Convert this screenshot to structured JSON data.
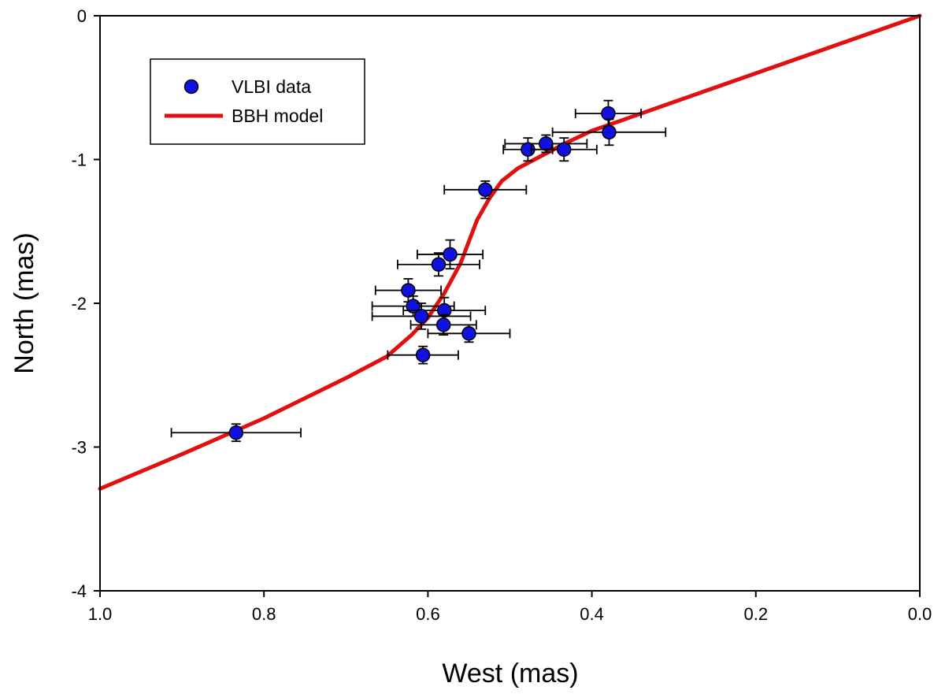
{
  "chart_data": {
    "type": "scatter",
    "title": "",
    "xlabel": "West (mas)",
    "ylabel": "North (mas)",
    "xlim": [
      1.0,
      0.0
    ],
    "ylim": [
      -4,
      0
    ],
    "x_ticks": [
      "1.0",
      "0.8",
      "0.6",
      "0.4",
      "0.2",
      "0.0"
    ],
    "y_ticks": [
      "0",
      "-1",
      "-2",
      "-3",
      "-4"
    ],
    "grid": false,
    "legend_position": "top-left",
    "colors": {
      "points": "#1010e0",
      "model": "#e01010",
      "errorbar": "#000000"
    },
    "legend": [
      {
        "label": "VLBI data",
        "kind": "marker"
      },
      {
        "label": "BBH model",
        "kind": "line"
      }
    ],
    "series": [
      {
        "name": "VLBI data",
        "kind": "points",
        "points": [
          {
            "x": 0.38,
            "y": -0.68,
            "xerr": 0.04,
            "yerr": 0.09
          },
          {
            "x": 0.379,
            "y": -0.81,
            "xerr": 0.069,
            "yerr": 0.09
          },
          {
            "x": 0.456,
            "y": -0.89,
            "xerr": 0.05,
            "yerr": 0.06
          },
          {
            "x": 0.478,
            "y": -0.93,
            "xerr": 0.03,
            "yerr": 0.08
          },
          {
            "x": 0.434,
            "y": -0.93,
            "xerr": 0.04,
            "yerr": 0.08
          },
          {
            "x": 0.53,
            "y": -1.21,
            "xerr": 0.05,
            "yerr": 0.06
          },
          {
            "x": 0.573,
            "y": -1.66,
            "xerr": 0.04,
            "yerr": 0.1
          },
          {
            "x": 0.587,
            "y": -1.73,
            "xerr": 0.05,
            "yerr": 0.08
          },
          {
            "x": 0.624,
            "y": -1.91,
            "xerr": 0.04,
            "yerr": 0.08
          },
          {
            "x": 0.618,
            "y": -2.02,
            "xerr": 0.05,
            "yerr": 0.07
          },
          {
            "x": 0.58,
            "y": -2.05,
            "xerr": 0.05,
            "yerr": 0.09
          },
          {
            "x": 0.608,
            "y": -2.09,
            "xerr": 0.06,
            "yerr": 0.09
          },
          {
            "x": 0.581,
            "y": -2.15,
            "xerr": 0.04,
            "yerr": 0.07
          },
          {
            "x": 0.55,
            "y": -2.21,
            "xerr": 0.05,
            "yerr": 0.06
          },
          {
            "x": 0.606,
            "y": -2.36,
            "xerr": 0.043,
            "yerr": 0.06
          },
          {
            "x": 0.834,
            "y": -2.9,
            "xerr": 0.079,
            "yerr": 0.06
          }
        ]
      },
      {
        "name": "BBH model",
        "kind": "line",
        "points": [
          {
            "x": 1.0,
            "y": -3.29
          },
          {
            "x": 0.9,
            "y": -3.05
          },
          {
            "x": 0.8,
            "y": -2.8
          },
          {
            "x": 0.7,
            "y": -2.52
          },
          {
            "x": 0.65,
            "y": -2.37
          },
          {
            "x": 0.62,
            "y": -2.22
          },
          {
            "x": 0.6,
            "y": -2.1
          },
          {
            "x": 0.58,
            "y": -1.93
          },
          {
            "x": 0.56,
            "y": -1.72
          },
          {
            "x": 0.55,
            "y": -1.57
          },
          {
            "x": 0.54,
            "y": -1.42
          },
          {
            "x": 0.525,
            "y": -1.27
          },
          {
            "x": 0.51,
            "y": -1.15
          },
          {
            "x": 0.49,
            "y": -1.06
          },
          {
            "x": 0.46,
            "y": -0.97
          },
          {
            "x": 0.43,
            "y": -0.88
          },
          {
            "x": 0.4,
            "y": -0.8
          },
          {
            "x": 0.35,
            "y": -0.7
          },
          {
            "x": 0.3,
            "y": -0.6
          },
          {
            "x": 0.2,
            "y": -0.4
          },
          {
            "x": 0.1,
            "y": -0.2
          },
          {
            "x": 0.0,
            "y": 0.0
          }
        ]
      }
    ]
  }
}
